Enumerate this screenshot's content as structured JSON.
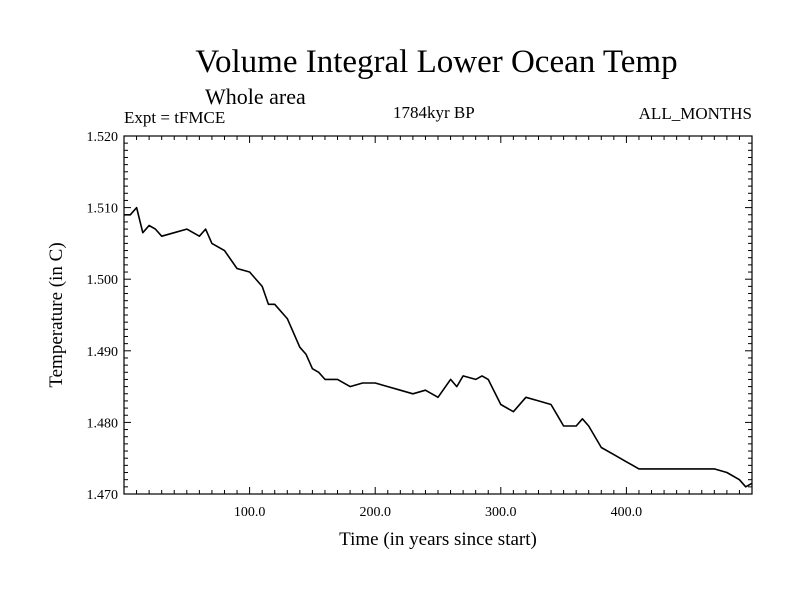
{
  "chart_data": {
    "type": "line",
    "title": "Volume Integral Lower Ocean Temp",
    "subtitle": "Whole area",
    "annotations": {
      "left": "Expt = tFMCE",
      "center": "1784kyr BP",
      "right": "ALL_MONTHS"
    },
    "xlabel": "Time (in years since start)",
    "ylabel": "Temperature (in C)",
    "xlim": [
      0,
      500
    ],
    "ylim": [
      1.47,
      1.52
    ],
    "xticks": [
      100,
      200,
      300,
      400
    ],
    "xtick_labels": [
      "100.0",
      "200.0",
      "300.0",
      "400.0"
    ],
    "yticks": [
      1.47,
      1.48,
      1.49,
      1.5,
      1.51,
      1.52
    ],
    "ytick_labels": [
      "1.470",
      "1.480",
      "1.490",
      "1.500",
      "1.510",
      "1.520"
    ],
    "grid": false,
    "series": [
      {
        "name": "Volume integral lower ocean temperature",
        "x": [
          0,
          5,
          10,
          15,
          20,
          25,
          30,
          40,
          50,
          60,
          65,
          70,
          80,
          90,
          100,
          110,
          115,
          120,
          130,
          140,
          145,
          150,
          155,
          160,
          170,
          180,
          190,
          200,
          210,
          220,
          230,
          240,
          250,
          260,
          265,
          270,
          280,
          285,
          290,
          300,
          310,
          320,
          330,
          340,
          345,
          350,
          360,
          365,
          370,
          380,
          390,
          400,
          410,
          420,
          430,
          440,
          450,
          460,
          470,
          480,
          490,
          495,
          500
        ],
        "values": [
          1.509,
          1.509,
          1.51,
          1.5065,
          1.5075,
          1.507,
          1.506,
          1.5065,
          1.507,
          1.506,
          1.507,
          1.505,
          1.504,
          1.5015,
          1.501,
          1.499,
          1.4965,
          1.4965,
          1.4945,
          1.4905,
          1.4895,
          1.4875,
          1.487,
          1.486,
          1.486,
          1.485,
          1.4855,
          1.4855,
          1.485,
          1.4845,
          1.484,
          1.4845,
          1.4835,
          1.486,
          1.485,
          1.4865,
          1.486,
          1.4865,
          1.486,
          1.4825,
          1.4815,
          1.4835,
          1.483,
          1.4825,
          1.481,
          1.4795,
          1.4795,
          1.4805,
          1.4795,
          1.4765,
          1.4755,
          1.4745,
          1.4735,
          1.4735,
          1.4735,
          1.4735,
          1.4735,
          1.4735,
          1.4735,
          1.473,
          1.472,
          1.471,
          1.4715
        ]
      }
    ]
  }
}
